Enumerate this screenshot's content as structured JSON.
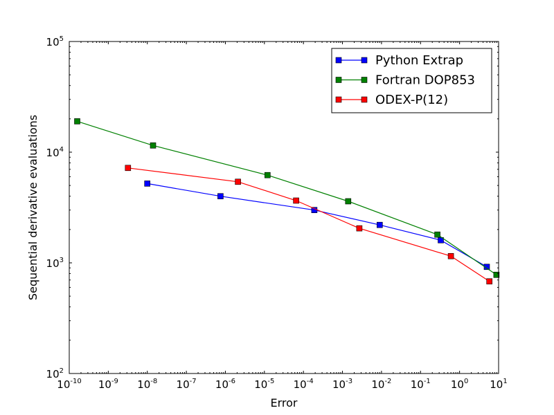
{
  "chart_data": {
    "type": "line",
    "xscale": "log",
    "yscale": "log",
    "xlabel": "Error",
    "ylabel": "Sequential derivative evaluations",
    "xlim": [
      1e-10,
      10
    ],
    "ylim": [
      100,
      100000
    ],
    "x_ticks": [
      {
        "base": "10",
        "exp": "-10",
        "value": 1e-10
      },
      {
        "base": "10",
        "exp": "-9",
        "value": 1e-09
      },
      {
        "base": "10",
        "exp": "-8",
        "value": 1e-08
      },
      {
        "base": "10",
        "exp": "-7",
        "value": 1e-07
      },
      {
        "base": "10",
        "exp": "-6",
        "value": 1e-06
      },
      {
        "base": "10",
        "exp": "-5",
        "value": 1e-05
      },
      {
        "base": "10",
        "exp": "-4",
        "value": 0.0001
      },
      {
        "base": "10",
        "exp": "-3",
        "value": 0.001
      },
      {
        "base": "10",
        "exp": "-2",
        "value": 0.01
      },
      {
        "base": "10",
        "exp": "-1",
        "value": 0.1
      },
      {
        "base": "10",
        "exp": "0",
        "value": 1
      },
      {
        "base": "10",
        "exp": "1",
        "value": 10
      }
    ],
    "y_ticks": [
      {
        "base": "10",
        "exp": "2",
        "value": 100
      },
      {
        "base": "10",
        "exp": "3",
        "value": 1000
      },
      {
        "base": "10",
        "exp": "4",
        "value": 10000
      },
      {
        "base": "10",
        "exp": "5",
        "value": 100000
      }
    ],
    "legend_position": "top-right",
    "grid": false,
    "series": [
      {
        "name": "Python Extrap",
        "color": "#0000ff",
        "marker": "square",
        "x": [
          1e-08,
          7.5e-07,
          0.00019,
          0.009,
          0.33,
          5
        ],
        "y": [
          5200,
          4000,
          3000,
          2200,
          1600,
          920
        ]
      },
      {
        "name": "Fortran DOP853",
        "color": "#008000",
        "marker": "square",
        "x": [
          1.6e-10,
          1.4e-08,
          1.2e-05,
          0.0014,
          0.27,
          8.8
        ],
        "y": [
          19000,
          11500,
          6200,
          3600,
          1800,
          780
        ]
      },
      {
        "name": "ODEX-P(12)",
        "color": "#ff0000",
        "marker": "square",
        "x": [
          3.2e-09,
          2.1e-06,
          6.5e-05,
          0.0027,
          0.6,
          5.8
        ],
        "y": [
          7200,
          5400,
          3650,
          2050,
          1150,
          680
        ]
      }
    ]
  }
}
